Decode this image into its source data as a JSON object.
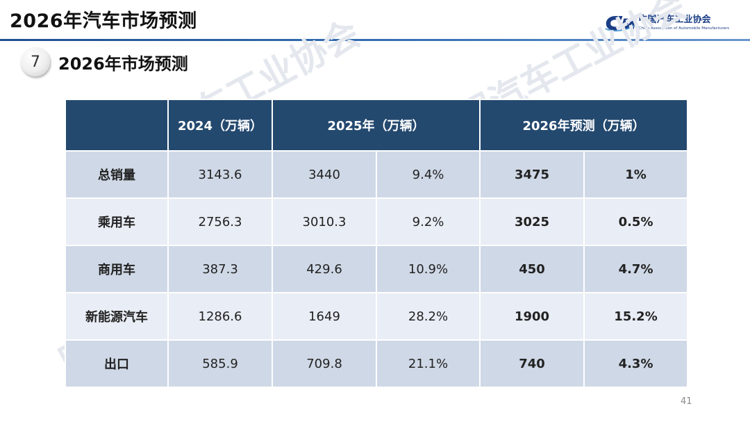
{
  "header": {
    "title": "2026年汽车市场预测",
    "logo_cn": "中国汽车工业协会",
    "logo_en": "China Association of Automobile Manufacturers"
  },
  "section": {
    "number": "7",
    "title": "2026年市场预测"
  },
  "watermark_text": "中国汽车工业协会",
  "table": {
    "headers": [
      "",
      "2024（万辆）",
      "2025年（万辆）",
      "2026年预测（万辆）"
    ],
    "rows": [
      {
        "label": "总销量",
        "v2024": "3143.6",
        "v2025": "3440",
        "g2025": "9.4%",
        "v2026": "3475",
        "g2026": "1%"
      },
      {
        "label": "乘用车",
        "v2024": "2756.3",
        "v2025": "3010.3",
        "g2025": "9.2%",
        "v2026": "3025",
        "g2026": "0.5%"
      },
      {
        "label": "商用车",
        "v2024": "387.3",
        "v2025": "429.6",
        "g2025": "10.9%",
        "v2026": "450",
        "g2026": "4.7%"
      },
      {
        "label": "新能源汽车",
        "v2024": "1286.6",
        "v2025": "1649",
        "g2025": "28.2%",
        "v2026": "1900",
        "g2026": "15.2%"
      },
      {
        "label": "出口",
        "v2024": "585.9",
        "v2025": "709.8",
        "g2025": "21.1%",
        "v2026": "740",
        "g2026": "4.3%"
      }
    ]
  },
  "page_number": "41",
  "colors": {
    "header_fill": "#24496f",
    "row_dark": "#cfd8e6",
    "row_light": "#e9edf5",
    "rule": "#1d4f91"
  }
}
